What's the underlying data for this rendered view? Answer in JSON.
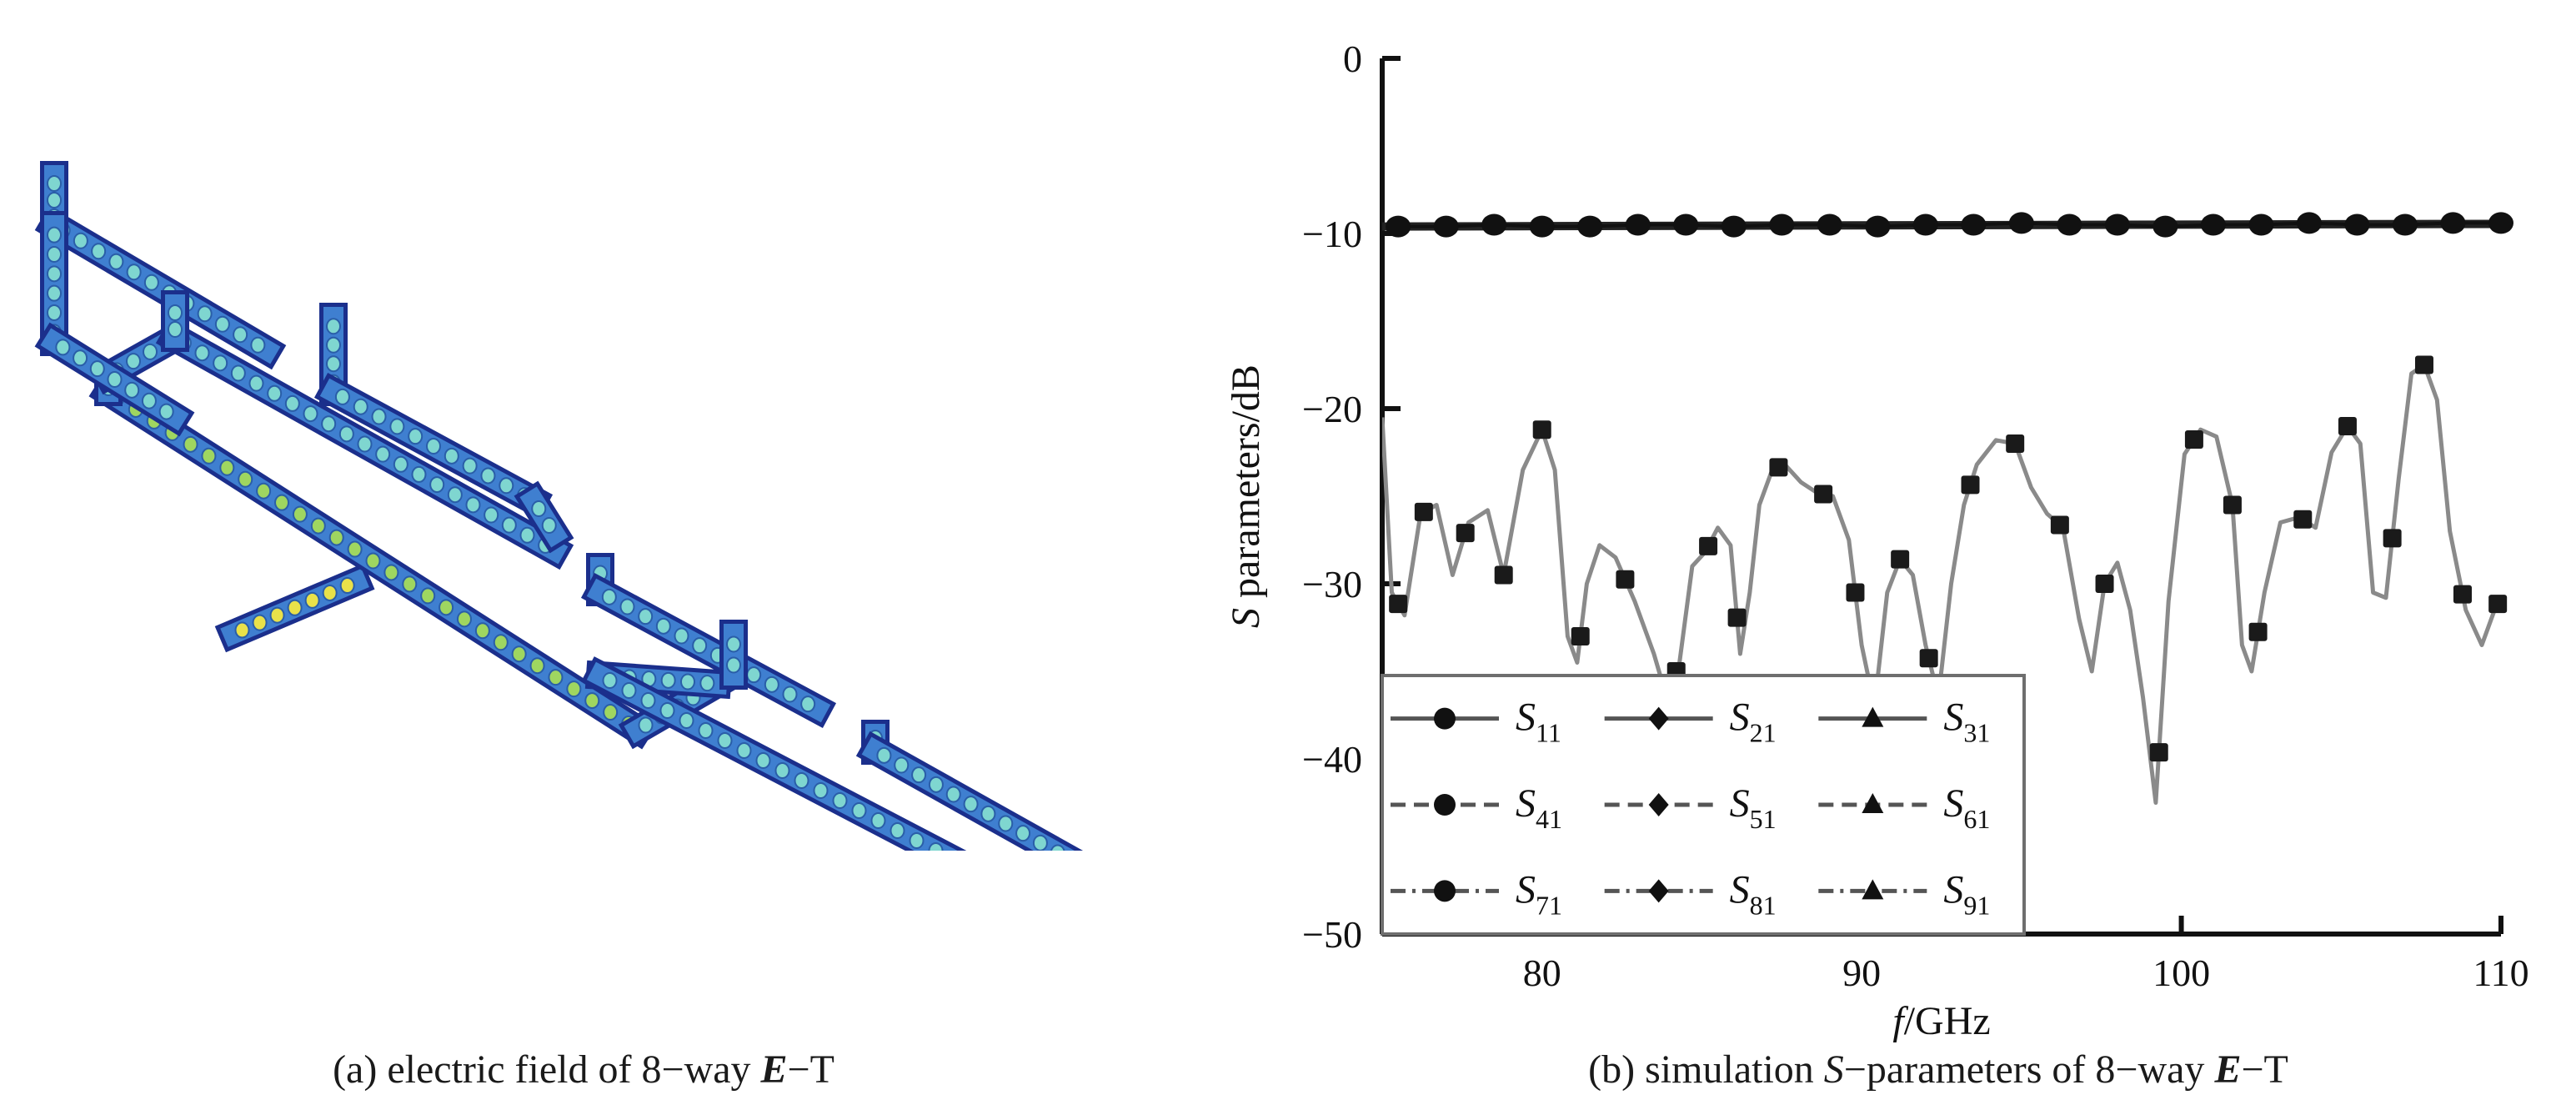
{
  "captions": {
    "a": {
      "prefix": "(a) electric field of 8−way ",
      "em": "E",
      "suffix": "−T"
    },
    "b": {
      "prefix": "(b) simulation ",
      "italic": "S",
      "mid": "−parameters of 8−way ",
      "em": "E",
      "suffix": "−T"
    }
  },
  "field_figure": {
    "colors": {
      "outer": "#1b2f8c",
      "inner": "#3f7fd0",
      "cell": "#7fd6d0",
      "hot": "#e9e14a",
      "warm": "#9fd660"
    }
  },
  "chart_data": {
    "type": "line",
    "xlabel_italic": "f",
    "xlabel_rest": "/GHz",
    "ylabel_italic": "S",
    "ylabel_rest": " parameters/dB",
    "xlim": [
      75,
      110
    ],
    "ylim": [
      -50,
      0
    ],
    "xticks": [
      80,
      90,
      100,
      110
    ],
    "yticks": [
      0,
      -10,
      -20,
      -30,
      -40,
      -50
    ],
    "grid": false,
    "legend_placement": "bottom-left",
    "legend": [
      {
        "sub": "11",
        "marker": "circle",
        "style": "solid"
      },
      {
        "sub": "21",
        "marker": "diamond",
        "style": "solid"
      },
      {
        "sub": "31",
        "marker": "triangle",
        "style": "solid"
      },
      {
        "sub": "41",
        "marker": "circle",
        "style": "dashed"
      },
      {
        "sub": "51",
        "marker": "diamond",
        "style": "dashed"
      },
      {
        "sub": "61",
        "marker": "triangle",
        "style": "dashed"
      },
      {
        "sub": "71",
        "marker": "circle",
        "style": "dashdot"
      },
      {
        "sub": "81",
        "marker": "diamond",
        "style": "dashdot"
      },
      {
        "sub": "91",
        "marker": "triangle",
        "style": "dashdot"
      }
    ],
    "series": [
      {
        "role": "transmission",
        "x": [
          75.5,
          77,
          78.5,
          80,
          81.5,
          83,
          84.5,
          86,
          87.5,
          89,
          90.5,
          92,
          93.5,
          95,
          96.5,
          98,
          99.5,
          101,
          102.5,
          104,
          105.5,
          107,
          108.5,
          110
        ],
        "y": [
          -9.6,
          -9.6,
          -9.5,
          -9.6,
          -9.6,
          -9.5,
          -9.5,
          -9.6,
          -9.5,
          -9.5,
          -9.6,
          -9.5,
          -9.5,
          -9.4,
          -9.5,
          -9.5,
          -9.6,
          -9.5,
          -9.5,
          -9.4,
          -9.5,
          -9.5,
          -9.4,
          -9.4
        ]
      },
      {
        "role": "reflection",
        "x": [
          75,
          75.3,
          75.7,
          76.2,
          76.7,
          77.2,
          77.7,
          78.3,
          78.8,
          79.4,
          80.0,
          80.4,
          80.8,
          81.1,
          81.4,
          81.8,
          82.3,
          82.9,
          83.5,
          83.9,
          84.3,
          84.7,
          85.1,
          85.5,
          85.9,
          86.2,
          86.5,
          86.8,
          87.2,
          87.6,
          88.1,
          88.6,
          89.1,
          89.6,
          90.0,
          90.4,
          90.8,
          91.2,
          91.6,
          92.0,
          92.4,
          92.8,
          93.2,
          93.6,
          94.2,
          94.8,
          95.3,
          95.8,
          96.3,
          96.8,
          97.2,
          97.6,
          98.0,
          98.4,
          98.8,
          99.2,
          99.6,
          100.1,
          100.6,
          101.1,
          101.6,
          101.9,
          102.2,
          102.6,
          103.1,
          103.7,
          104.2,
          104.7,
          105.2,
          105.6,
          106.0,
          106.4,
          106.8,
          107.2,
          107.6,
          108.0,
          108.4,
          108.9,
          109.4,
          109.8,
          110
        ],
        "y": [
          -20.5,
          -30.5,
          -31.8,
          -26.0,
          -25.5,
          -29.5,
          -26.5,
          -25.8,
          -29.5,
          -23.5,
          -21.2,
          -23.5,
          -33.0,
          -34.5,
          -30.0,
          -27.8,
          -28.5,
          -31.0,
          -34.0,
          -36.5,
          -34.5,
          -29.0,
          -28.2,
          -26.8,
          -27.8,
          -34.0,
          -30.5,
          -25.5,
          -23.5,
          -23.2,
          -24.2,
          -24.8,
          -25.0,
          -27.5,
          -33.5,
          -37.0,
          -30.5,
          -28.6,
          -29.5,
          -33.5,
          -36.5,
          -30.0,
          -25.5,
          -23.2,
          -21.8,
          -22.0,
          -24.5,
          -26.0,
          -26.8,
          -32.0,
          -35.0,
          -30.0,
          -28.8,
          -31.5,
          -36.5,
          -42.5,
          -31.0,
          -22.6,
          -21.2,
          -21.6,
          -25.5,
          -33.5,
          -35.0,
          -30.5,
          -26.5,
          -26.2,
          -26.8,
          -22.5,
          -21.0,
          -22.0,
          -30.5,
          -30.8,
          -24.0,
          -18.0,
          -17.5,
          -19.5,
          -27.0,
          -31.5,
          -33.5,
          -31.5,
          -30.8
        ]
      }
    ],
    "reflection_markers_x": [
      75.5,
      76.3,
      77.6,
      78.8,
      80.0,
      81.2,
      82.6,
      84.2,
      85.2,
      86.1,
      87.4,
      88.8,
      89.8,
      91.2,
      92.1,
      93.4,
      94.8,
      96.2,
      97.6,
      99.3,
      100.4,
      101.6,
      102.4,
      103.8,
      105.2,
      106.6,
      107.6,
      108.8,
      109.9
    ]
  }
}
